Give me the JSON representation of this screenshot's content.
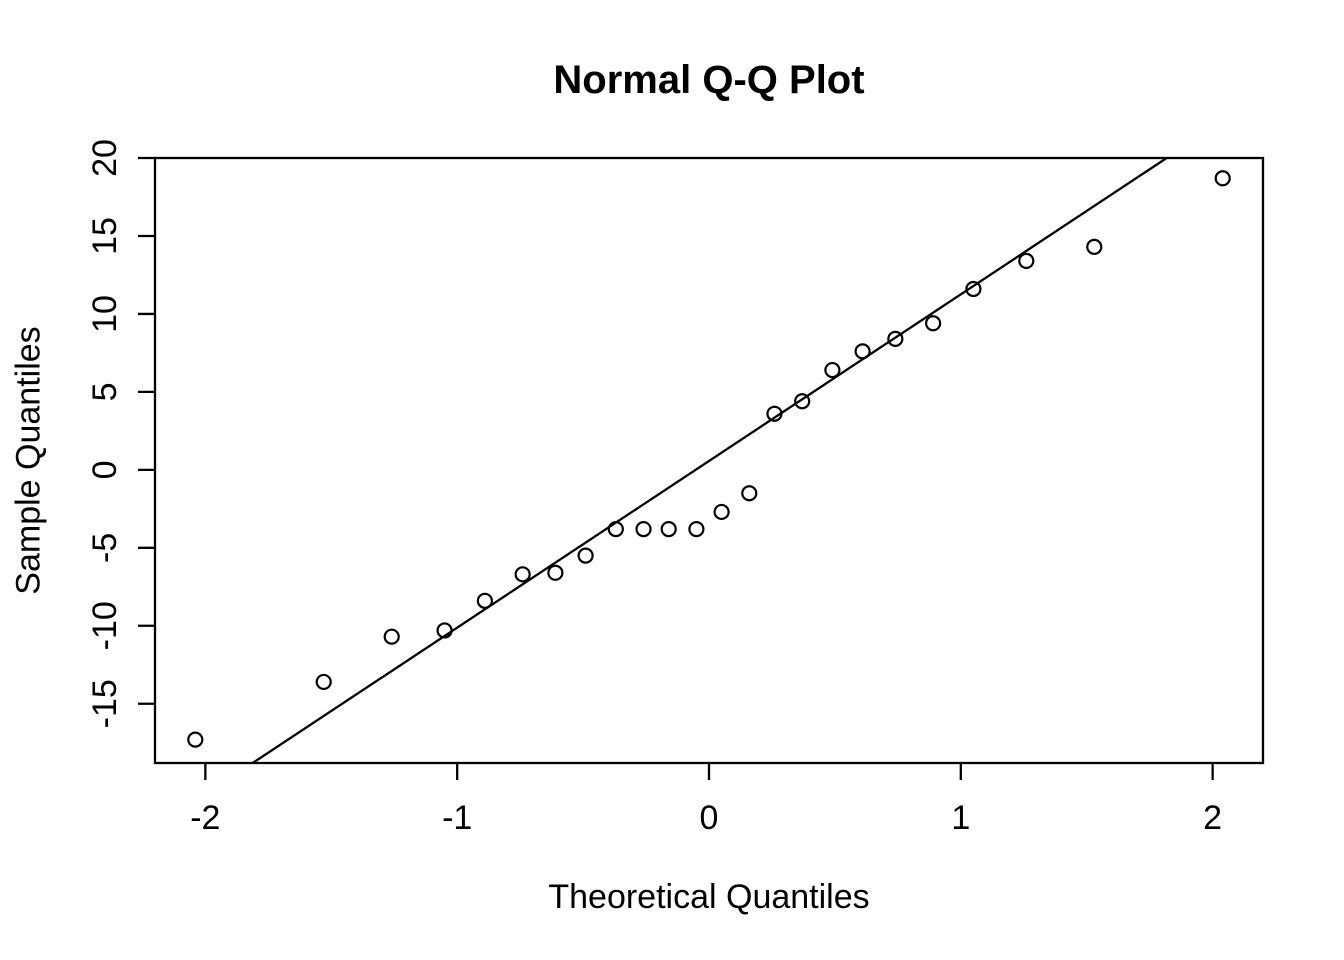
{
  "colors": {
    "foreground": "#000000",
    "background": "#FFFFFF"
  },
  "chart_data": {
    "type": "scatter",
    "title": "Normal Q-Q Plot",
    "xlabel": "Theoretical Quantiles",
    "ylabel": "Sample Quantiles",
    "xlim": [
      -2.2,
      2.2
    ],
    "ylim": [
      -18.8,
      20.0
    ],
    "x_ticks": [
      -2,
      -1,
      0,
      1,
      2
    ],
    "y_ticks": [
      -15,
      -10,
      -5,
      0,
      5,
      10,
      15,
      20
    ],
    "grid": false,
    "frame": "box",
    "legend": "none",
    "marker": "open-circle",
    "n_points": 24,
    "points": {
      "x": [
        -2.04,
        -1.53,
        -1.26,
        -1.05,
        -0.89,
        -0.74,
        -0.61,
        -0.49,
        -0.37,
        -0.26,
        -0.16,
        -0.05,
        0.05,
        0.16,
        0.26,
        0.37,
        0.49,
        0.61,
        0.74,
        0.89,
        1.05,
        1.26,
        1.53,
        2.04
      ],
      "y": [
        -17.3,
        -13.6,
        -10.7,
        -10.3,
        -8.4,
        -6.7,
        -6.6,
        -5.5,
        -3.8,
        -3.8,
        -3.8,
        -3.8,
        -2.7,
        -1.5,
        3.6,
        4.4,
        6.4,
        7.6,
        8.4,
        9.4,
        11.6,
        13.4,
        14.3,
        18.7
      ]
    },
    "reference_line": {
      "slope": 10.69,
      "intercept": 0.57
    }
  }
}
